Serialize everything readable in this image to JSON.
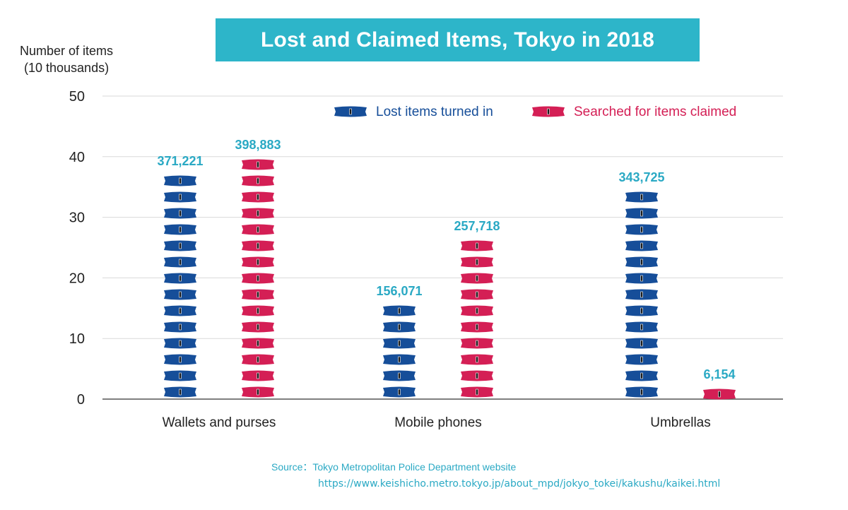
{
  "title": "Lost and Claimed Items, Tokyo in 2018",
  "ylabel_line1": "Number of items",
  "ylabel_line2": "(10 thousands)",
  "source": "Source：Tokyo Metropolitan Police Department website",
  "source_url": "https://www.keishicho.metro.tokyo.jp/about_mpd/jokyo_tokei/kakushu/kaikei.html",
  "colors": {
    "title_bg": "#2db5c9",
    "lost": "#164e99",
    "claimed": "#d41f55",
    "data_label": "#2aa9c4",
    "grid": "#d9d9d9",
    "axis": "#555555"
  },
  "chart_data": {
    "type": "bar",
    "categories": [
      "Wallets and purses",
      "Mobile phones",
      "Umbrellas"
    ],
    "series": [
      {
        "name": "Lost items turned in",
        "values": [
          37.1221,
          15.6071,
          34.3725
        ],
        "labels": [
          "371,221",
          "156,071",
          "343,725"
        ]
      },
      {
        "name": "Searched for items claimed",
        "values": [
          39.8883,
          25.7718,
          0.6154
        ],
        "labels": [
          "398,883",
          "257,718",
          "6,154"
        ]
      }
    ],
    "yticks": [
      0,
      10,
      20,
      30,
      40,
      50
    ],
    "ylim": [
      0,
      50
    ],
    "grid": true,
    "legend_position": "top-right",
    "mark_style": "stacked wallet icons, one per 25 thousand items"
  }
}
